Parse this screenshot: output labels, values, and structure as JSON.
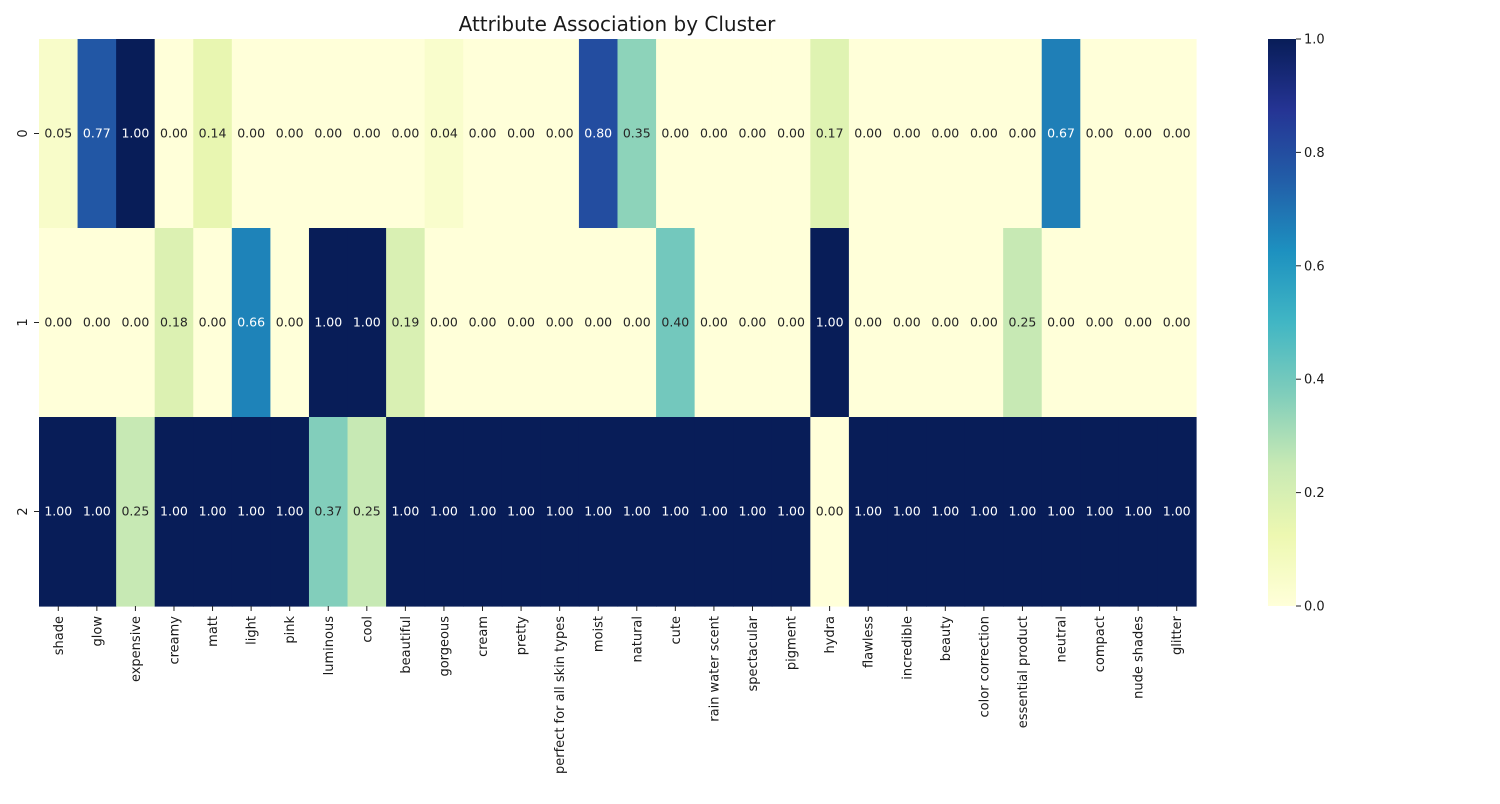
{
  "chart_data": {
    "type": "heatmap",
    "title": "Attribute Association by Cluster",
    "xlabel": "",
    "ylabel": "",
    "rows": [
      "0",
      "1",
      "2"
    ],
    "columns": [
      "shade",
      "glow",
      "expensive",
      "creamy",
      "matt",
      "light",
      "pink",
      "luminous",
      "cool",
      "beautiful",
      "gorgeous",
      "cream",
      "pretty",
      "perfect for all skin types",
      "moist",
      "natural",
      "cute",
      "rain water scent",
      "spectacular",
      "pigment",
      "hydra",
      "flawless",
      "incredible",
      "beauty",
      "color correction",
      "essential product",
      "neutral",
      "compact",
      "nude shades",
      "glitter"
    ],
    "values": [
      [
        0.05,
        0.77,
        1.0,
        0.0,
        0.14,
        0.0,
        0.0,
        0.0,
        0.0,
        0.0,
        0.04,
        0.0,
        0.0,
        0.0,
        0.8,
        0.35,
        0.0,
        0.0,
        0.0,
        0.0,
        0.17,
        0.0,
        0.0,
        0.0,
        0.0,
        0.0,
        0.67,
        0.0,
        0.0,
        0.0
      ],
      [
        0.0,
        0.0,
        0.0,
        0.18,
        0.0,
        0.66,
        0.0,
        1.0,
        1.0,
        0.19,
        0.0,
        0.0,
        0.0,
        0.0,
        0.0,
        0.0,
        0.4,
        0.0,
        0.0,
        0.0,
        1.0,
        0.0,
        0.0,
        0.0,
        0.0,
        0.25,
        0.0,
        0.0,
        0.0,
        0.0
      ],
      [
        1.0,
        1.0,
        0.25,
        1.0,
        1.0,
        1.0,
        1.0,
        0.37,
        0.25,
        1.0,
        1.0,
        1.0,
        1.0,
        1.0,
        1.0,
        1.0,
        1.0,
        1.0,
        1.0,
        1.0,
        0.0,
        1.0,
        1.0,
        1.0,
        1.0,
        1.0,
        1.0,
        1.0,
        1.0,
        1.0
      ]
    ],
    "value_format": "0.00",
    "colormap": "YlGnBu",
    "vmin": 0,
    "vmax": 1,
    "colorbar_ticks": [
      "0.0",
      "0.2",
      "0.4",
      "0.6",
      "0.8",
      "1.0"
    ],
    "colorbar_tick_values": [
      0.0,
      0.2,
      0.4,
      0.6,
      0.8,
      1.0
    ],
    "legend": "colorbar-right",
    "grid": false
  }
}
